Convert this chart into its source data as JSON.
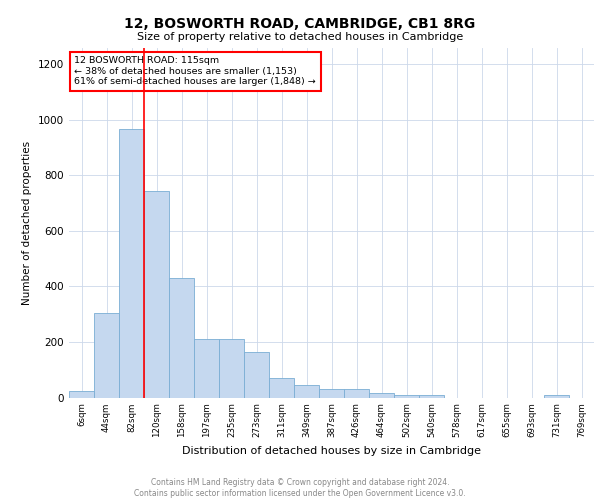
{
  "title": "12, BOSWORTH ROAD, CAMBRIDGE, CB1 8RG",
  "subtitle": "Size of property relative to detached houses in Cambridge",
  "xlabel": "Distribution of detached houses by size in Cambridge",
  "ylabel": "Number of detached properties",
  "bar_color": "#c5d8ef",
  "bar_edge_color": "#7aadd4",
  "bar_width": 1.0,
  "categories": [
    "6sqm",
    "44sqm",
    "82sqm",
    "120sqm",
    "158sqm",
    "197sqm",
    "235sqm",
    "273sqm",
    "311sqm",
    "349sqm",
    "387sqm",
    "426sqm",
    "464sqm",
    "502sqm",
    "540sqm",
    "578sqm",
    "617sqm",
    "655sqm",
    "693sqm",
    "731sqm",
    "769sqm"
  ],
  "values": [
    25,
    305,
    965,
    745,
    430,
    210,
    210,
    165,
    70,
    45,
    30,
    30,
    18,
    10,
    10,
    0,
    0,
    0,
    0,
    10,
    0
  ],
  "annotation_line1": "12 BOSWORTH ROAD: 115sqm",
  "annotation_line2": "← 38% of detached houses are smaller (1,153)",
  "annotation_line3": "61% of semi-detached houses are larger (1,848) →",
  "ylim": [
    0,
    1260
  ],
  "yticks": [
    0,
    200,
    400,
    600,
    800,
    1000,
    1200
  ],
  "footer_line1": "Contains HM Land Registry data © Crown copyright and database right 2024.",
  "footer_line2": "Contains public sector information licensed under the Open Government Licence v3.0.",
  "background_color": "#ffffff",
  "grid_color": "#ccd8ea"
}
